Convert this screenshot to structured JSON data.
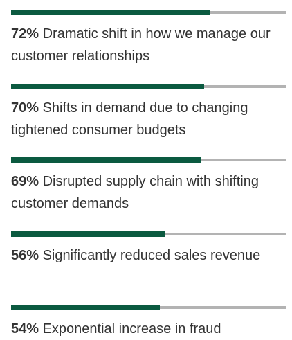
{
  "chart_data": {
    "type": "bar",
    "orientation": "horizontal",
    "categories": [
      "Dramatic shift in how we manage our customer relationships",
      "Shifts in demand due to changing tightened consumer budgets",
      "Disrupted supply chain with shifting customer demands",
      "Significantly reduced sales revenue",
      "Exponential increase in fraud"
    ],
    "values": [
      72,
      70,
      69,
      56,
      54
    ],
    "value_labels": [
      "72%",
      "70%",
      "69%",
      "56%",
      "54%"
    ],
    "color": "#0b5a40",
    "track_color": "#b3b3b3",
    "xlim": [
      0,
      100
    ]
  }
}
